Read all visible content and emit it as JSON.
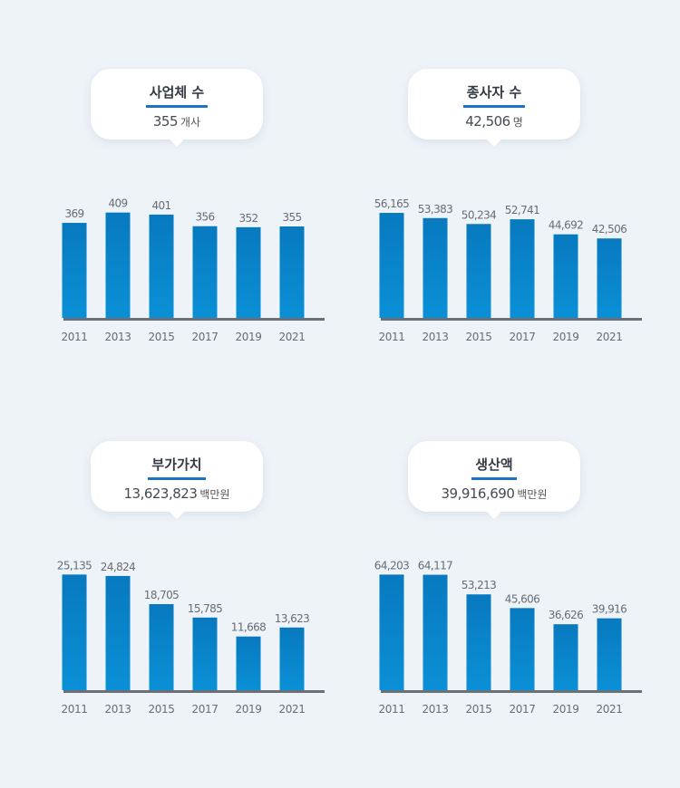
{
  "panels": [
    {
      "id": "establishments",
      "title": "사업체 수",
      "value": "355",
      "unit": "개사",
      "chart_data": {
        "type": "bar",
        "categories": [
          "2011",
          "2013",
          "2015",
          "2017",
          "2019",
          "2021"
        ],
        "values": [
          369,
          409,
          401,
          356,
          352,
          355
        ],
        "value_labels": [
          "369",
          "409",
          "401",
          "356",
          "352",
          "355"
        ],
        "title": "사업체 수",
        "xlabel": "",
        "ylabel": "",
        "ylim": [
          0,
          450
        ]
      }
    },
    {
      "id": "employees",
      "title": "종사자 수",
      "value": "42,506",
      "unit": "명",
      "chart_data": {
        "type": "bar",
        "categories": [
          "2011",
          "2013",
          "2015",
          "2017",
          "2019",
          "2021"
        ],
        "values": [
          56165,
          53383,
          50234,
          52741,
          44692,
          42506
        ],
        "value_labels": [
          "56,165",
          "53,383",
          "50,234",
          "52,741",
          "44,692",
          "42,506"
        ],
        "title": "종사자 수",
        "xlabel": "",
        "ylabel": "",
        "ylim": [
          0,
          62000
        ]
      }
    },
    {
      "id": "value-added",
      "title": "부가가치",
      "value": "13,623,823",
      "unit": "백만원",
      "chart_data": {
        "type": "bar",
        "categories": [
          "2011",
          "2013",
          "2015",
          "2017",
          "2019",
          "2021"
        ],
        "values": [
          25135,
          24824,
          18705,
          15785,
          11668,
          13623
        ],
        "value_labels": [
          "25,135",
          "24,824",
          "18,705",
          "15,785",
          "11,668",
          "13,623"
        ],
        "title": "부가가치",
        "xlabel": "",
        "ylabel": "",
        "ylim": [
          0,
          25200
        ]
      }
    },
    {
      "id": "production",
      "title": "생산액",
      "value": "39,916,690",
      "unit": "백만원",
      "chart_data": {
        "type": "bar",
        "categories": [
          "2011",
          "2013",
          "2015",
          "2017",
          "2019",
          "2021"
        ],
        "values": [
          64203,
          64117,
          53213,
          45606,
          36626,
          39916
        ],
        "value_labels": [
          "64,203",
          "64,117",
          "53,213",
          "45,606",
          "36,626",
          "39,916"
        ],
        "title": "생산액",
        "xlabel": "",
        "ylabel": "",
        "ylim": [
          0,
          64400
        ]
      }
    }
  ],
  "colors": {
    "bar_top": "#0879bf",
    "bar_bottom": "#0a90d6",
    "baseline": "#6b7078",
    "label": "#666c75",
    "underline": "#1a73c4"
  }
}
